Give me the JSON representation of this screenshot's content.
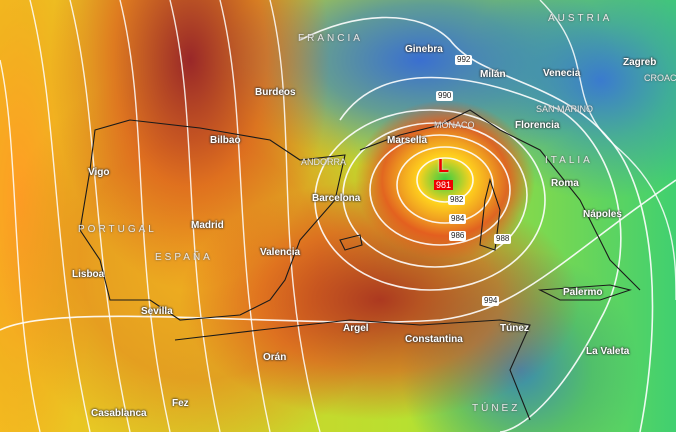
{
  "colors": {
    "low_marker": "#ee0000",
    "isobar": "#ffffff",
    "coast": "#1a1a1a"
  },
  "countries": {
    "francia": "FRANCIA",
    "austria": "AUSTRIA",
    "portugal": "PORTUGAL",
    "espana": "ESPAÑA",
    "italia": "ITALIA",
    "andorra": "ANDORRA",
    "monaco": "MÓNACO",
    "san_marino": "SAN MARINO",
    "croacia": "CROAC",
    "tunez": "TÚNEZ"
  },
  "cities": {
    "ginebra": "Ginebra",
    "milan": "Milán",
    "venecia": "Venecia",
    "zagreb": "Zagreb",
    "burdeos": "Burdeos",
    "bilbao": "Bilbao",
    "marsella": "Marsella",
    "florencia": "Florencia",
    "vigo": "Vigo",
    "roma": "Roma",
    "barcelona": "Barcelona",
    "madrid": "Madrid",
    "napoles": "Nápoles",
    "valencia": "Valencia",
    "lisboa": "Lisboa",
    "palermo": "Palermo",
    "sevilla": "Sevilla",
    "argel": "Argel",
    "tunez": "Túnez",
    "constantina": "Constantina",
    "la_valeta": "La Valeta",
    "oran": "Orán",
    "casablanca": "Casablanca",
    "fez": "Fez"
  },
  "low": {
    "symbol": "L",
    "pressure": "981"
  },
  "isobars": [
    "990",
    "992",
    "982",
    "984",
    "986",
    "988",
    "994"
  ]
}
